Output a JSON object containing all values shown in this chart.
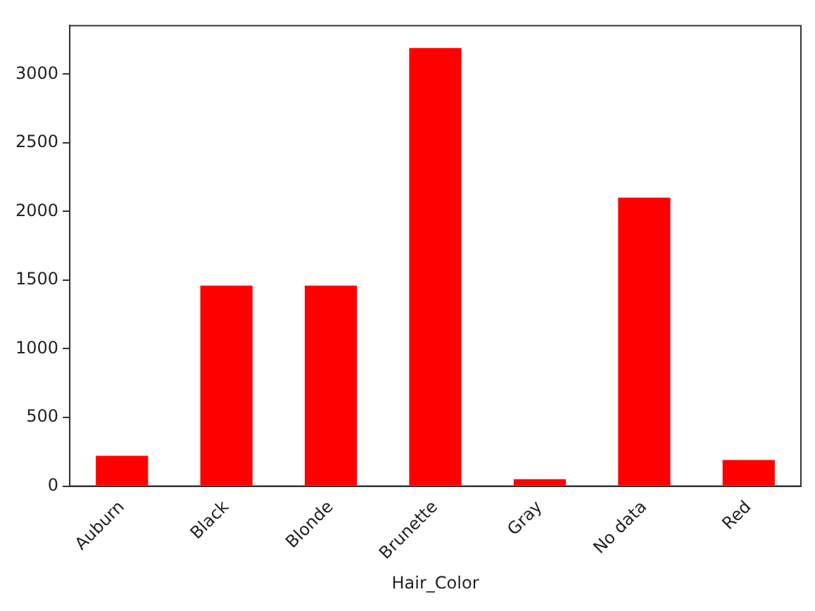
{
  "chart_data": {
    "type": "bar",
    "xlabel": "Hair_Color",
    "categories": [
      "Auburn",
      "Black",
      "Blonde",
      "Brunette",
      "Gray",
      "No data",
      "Red"
    ],
    "values": [
      220,
      1460,
      1460,
      3190,
      50,
      2100,
      190
    ],
    "color": "#ff0000",
    "ylim": [
      0,
      3353
    ],
    "yticks": [
      0,
      500,
      1000,
      1500,
      2000,
      2500,
      3000
    ],
    "grid": false,
    "legend": false
  }
}
